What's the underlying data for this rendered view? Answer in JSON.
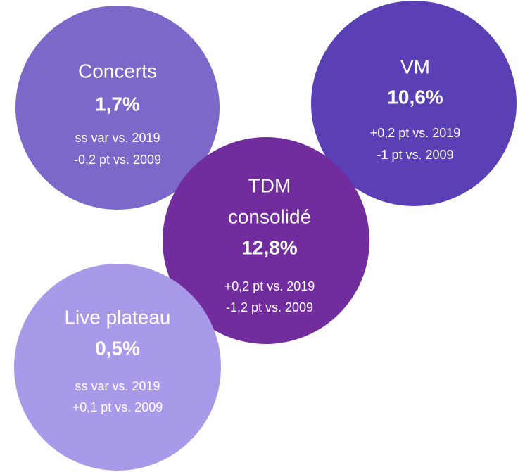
{
  "nodes": [
    {
      "title": [
        "Concerts"
      ],
      "value": "1,7%",
      "notes": [
        "ss var vs. 2019",
        "-0,2 pt vs. 2009"
      ]
    },
    {
      "title": [
        "VM"
      ],
      "value": "10,6%",
      "notes": [
        "+0,2 pt vs. 2019",
        "-1 pt vs. 2009"
      ]
    },
    {
      "title": [
        "TDM",
        "consolidé"
      ],
      "value": "12,8%",
      "notes": [
        "+0,2 pt vs. 2019",
        "-1,2 pt vs. 2009"
      ]
    },
    {
      "title": [
        "Live plateau"
      ],
      "value": "0,5%",
      "notes": [
        "ss var vs. 2019",
        "+0,1 pt vs. 2009"
      ]
    }
  ]
}
